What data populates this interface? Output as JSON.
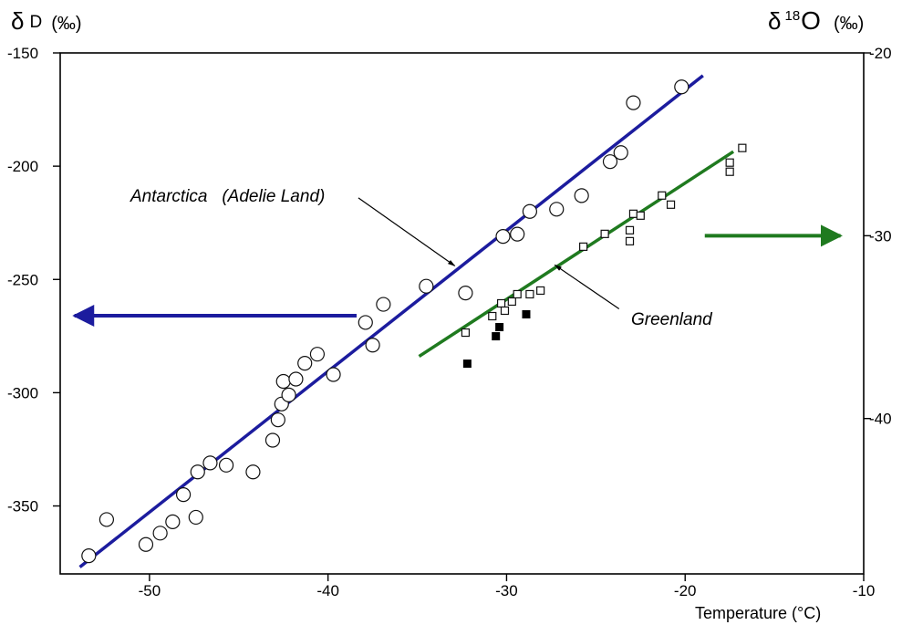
{
  "chart_data": {
    "type": "scatter",
    "left_axis_title": {
      "symbol": "δ",
      "letter": "D",
      "unit": "(‰)"
    },
    "right_axis_title": {
      "symbol": "δ",
      "superscript": "18",
      "letter": "O",
      "unit": "(‰)"
    },
    "xlabel": "Temperature (°C)",
    "xlim": [
      -55,
      -10
    ],
    "ylim": [
      -380,
      -150
    ],
    "y2lim": [
      -48.5,
      -20
    ],
    "x_ticks": [
      -50,
      -40,
      -30,
      -20,
      -10
    ],
    "x_tick_labels": [
      "-50",
      "-40",
      "-30",
      "-20",
      "-10"
    ],
    "y_ticks": [
      -150,
      -200,
      -250,
      -300,
      -350
    ],
    "y_tick_labels": [
      "-150",
      "-200",
      "-250",
      "-300",
      "-350"
    ],
    "y2_ticks": [
      -20,
      -30,
      -40
    ],
    "y2_tick_labels": [
      "-20",
      "-30",
      "-40"
    ],
    "grid": false,
    "annotations": {
      "antarctica": "Antarctica   (Adelie Land)",
      "greenland": "Greenland"
    },
    "colors": {
      "antarctica_line": "#1c1c9e",
      "greenland_line": "#1f7a1f",
      "axes": "#000000"
    },
    "series": [
      {
        "axis": "left",
        "marker": "open-circle",
        "points": [
          [
            -53.4,
            -372
          ],
          [
            -52.4,
            -356
          ],
          [
            -50.2,
            -367
          ],
          [
            -49.4,
            -362
          ],
          [
            -48.7,
            -357
          ],
          [
            -48.1,
            -345
          ],
          [
            -47.4,
            -355
          ],
          [
            -47.3,
            -335
          ],
          [
            -46.6,
            -331
          ],
          [
            -45.7,
            -332
          ],
          [
            -44.2,
            -335
          ],
          [
            -43.1,
            -321
          ],
          [
            -42.8,
            -312
          ],
          [
            -42.6,
            -305
          ],
          [
            -42.5,
            -295
          ],
          [
            -42.2,
            -301
          ],
          [
            -41.8,
            -294
          ],
          [
            -41.3,
            -287
          ],
          [
            -40.6,
            -283
          ],
          [
            -39.7,
            -292
          ],
          [
            -37.9,
            -269
          ],
          [
            -37.5,
            -279
          ],
          [
            -36.9,
            -261
          ],
          [
            -34.5,
            -253
          ],
          [
            -32.3,
            -256
          ],
          [
            -30.2,
            -231
          ],
          [
            -29.4,
            -230
          ],
          [
            -28.7,
            -220
          ],
          [
            -27.2,
            -219
          ],
          [
            -25.8,
            -213
          ],
          [
            -24.2,
            -198
          ],
          [
            -23.6,
            -194
          ],
          [
            -22.9,
            -172
          ],
          [
            -20.2,
            -165
          ]
        ]
      },
      {
        "axis": "right",
        "marker": "open-square",
        "points": [
          [
            -32.3,
            -35.3
          ],
          [
            -30.8,
            -34.4
          ],
          [
            -30.3,
            -33.7
          ],
          [
            -30.1,
            -34.1
          ],
          [
            -29.7,
            -33.6
          ],
          [
            -29.4,
            -33.2
          ],
          [
            -28.7,
            -33.2
          ],
          [
            -28.1,
            -33.0
          ],
          [
            -25.7,
            -30.6
          ],
          [
            -24.5,
            -29.9
          ],
          [
            -23.1,
            -29.7
          ],
          [
            -23.1,
            -30.3
          ],
          [
            -22.9,
            -28.8
          ],
          [
            -22.5,
            -28.9
          ],
          [
            -21.3,
            -27.8
          ],
          [
            -20.8,
            -28.3
          ],
          [
            -17.5,
            -26.0
          ],
          [
            -17.5,
            -26.5
          ],
          [
            -16.8,
            -25.2
          ]
        ]
      },
      {
        "axis": "right",
        "marker": "filled-square",
        "points": [
          [
            -32.2,
            -37.0
          ],
          [
            -30.6,
            -35.5
          ],
          [
            -30.4,
            -35.0
          ],
          [
            -28.9,
            -34.3
          ]
        ]
      }
    ],
    "fit_lines": [
      {
        "name": "Antarctica (Adelie Land)",
        "axis": "left",
        "x": [
          -53.9,
          -19.0
        ],
        "y": [
          -377,
          -160
        ]
      },
      {
        "name": "Greenland",
        "axis": "right",
        "x": [
          -34.9,
          -17.3
        ],
        "y": [
          -36.6,
          -25.4
        ]
      }
    ],
    "arrows": [
      {
        "direction": "left",
        "from_x": -38.4,
        "to_x": -54.2,
        "at": -266,
        "axis": "left"
      },
      {
        "direction": "right",
        "from_x": -18.9,
        "to_x": -11.3,
        "at": -30,
        "axis": "right"
      }
    ],
    "callouts": [
      {
        "target": "antarctica",
        "from": [
          -38.3,
          -214
        ],
        "to": [
          -32.9,
          -244
        ],
        "axis": "left"
      },
      {
        "target": "greenland",
        "from": [
          -23.7,
          -34.0
        ],
        "to": [
          -27.3,
          -31.6
        ],
        "axis": "right"
      }
    ]
  }
}
